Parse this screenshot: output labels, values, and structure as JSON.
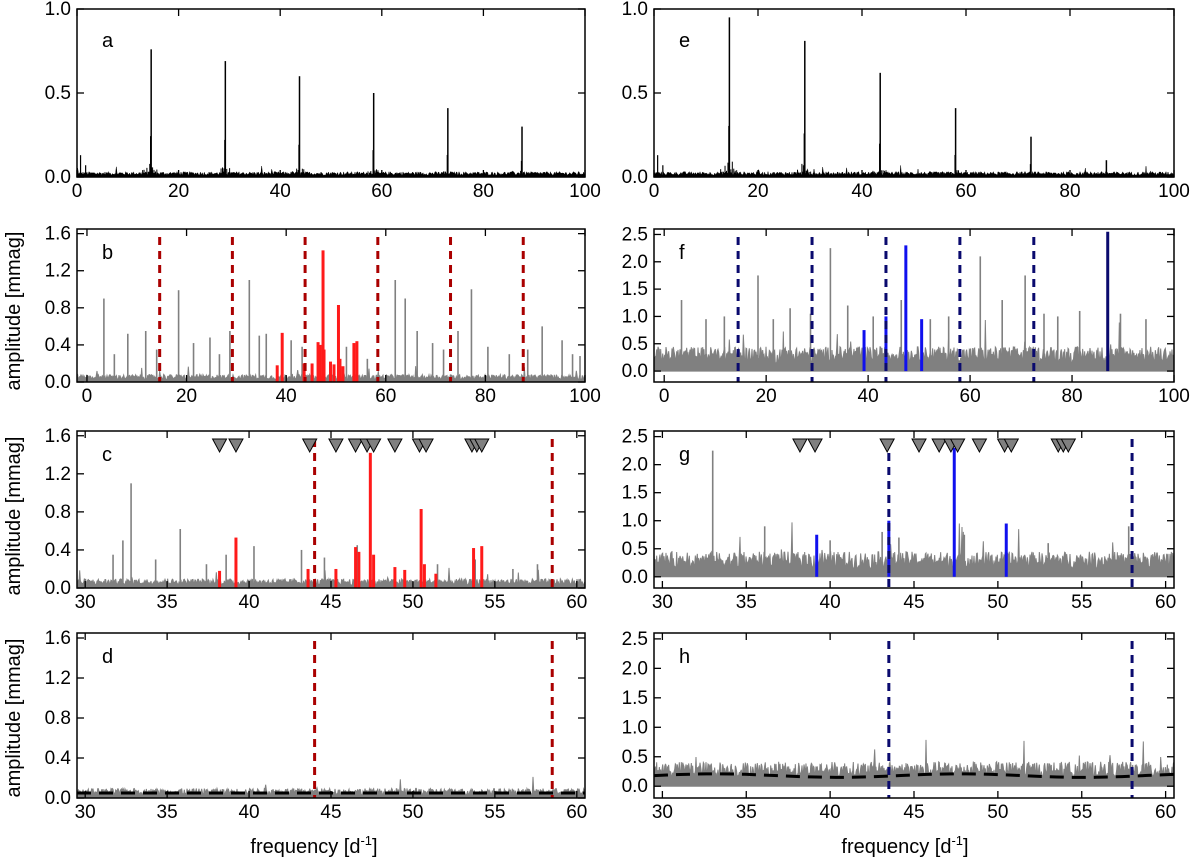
{
  "figure": {
    "ylabel": "amplitude [mmag]",
    "xlabel_main": "frequency [d",
    "xlabel_sup": "-1",
    "xlabel_end": "]"
  },
  "colors": {
    "gray": "#808080",
    "red": "#ff1a1a",
    "darkred": "#aa0000",
    "blue": "#1010ee",
    "navy": "#0a0a6e",
    "black": "#000000"
  },
  "chart_data": [
    {
      "label": "a",
      "type": "line",
      "xlim": [
        0,
        100
      ],
      "ylim": [
        0,
        1.0
      ],
      "xticks": [
        0,
        20,
        40,
        60,
        80,
        100
      ],
      "yticks": [
        0.0,
        0.5,
        1.0
      ],
      "ytick_fmt": 1,
      "peaks": [
        [
          14.6,
          0.76
        ],
        [
          29.2,
          0.69
        ],
        [
          43.8,
          0.6
        ],
        [
          58.4,
          0.5
        ],
        [
          73.0,
          0.41
        ],
        [
          87.6,
          0.3
        ]
      ],
      "noise_level": 0.02
    },
    {
      "label": "e",
      "type": "line",
      "xlim": [
        0,
        100
      ],
      "ylim": [
        0,
        1.0
      ],
      "xticks": [
        0,
        20,
        40,
        60,
        80,
        100
      ],
      "yticks": [
        0.0,
        0.5,
        1.0
      ],
      "ytick_fmt": 1,
      "peaks": [
        [
          14.5,
          0.95
        ],
        [
          29.0,
          0.81
        ],
        [
          43.5,
          0.62
        ],
        [
          58.0,
          0.41
        ],
        [
          72.5,
          0.24
        ],
        [
          87.0,
          0.1
        ]
      ],
      "noise_level": 0.02
    },
    {
      "label": "b",
      "type": "bar",
      "xlim": [
        -2,
        100
      ],
      "ylim": [
        0,
        1.65
      ],
      "xticks": [
        0,
        20,
        40,
        60,
        80,
        100
      ],
      "yticks": [
        0.0,
        0.4,
        0.8,
        1.2,
        1.6
      ],
      "ytick_fmt": 1,
      "dashed_lines": [
        14.6,
        29.2,
        43.8,
        58.4,
        73.0,
        87.6
      ],
      "gray_peaks": [
        [
          3.4,
          0.9
        ],
        [
          5.5,
          0.3
        ],
        [
          8.2,
          0.52
        ],
        [
          11.8,
          0.55
        ],
        [
          14.0,
          0.35
        ],
        [
          18.4,
          0.99
        ],
        [
          21.4,
          0.42
        ],
        [
          24.7,
          0.48
        ],
        [
          26.6,
          0.3
        ],
        [
          28.7,
          0.55
        ],
        [
          32.6,
          1.1
        ],
        [
          34.6,
          0.5
        ],
        [
          36.0,
          0.52
        ],
        [
          41.0,
          0.45
        ],
        [
          43.2,
          0.38
        ],
        [
          47.5,
          0.4
        ],
        [
          52.1,
          0.38
        ],
        [
          56.3,
          0.25
        ],
        [
          61.9,
          1.1
        ],
        [
          63.9,
          0.9
        ],
        [
          66.3,
          0.55
        ],
        [
          69.4,
          0.42
        ],
        [
          71.6,
          0.35
        ],
        [
          74.5,
          0.55
        ],
        [
          77.2,
          1.0
        ],
        [
          80.5,
          0.38
        ],
        [
          84.8,
          0.3
        ],
        [
          88.5,
          0.35
        ],
        [
          91.4,
          0.6
        ],
        [
          95.4,
          0.45
        ],
        [
          97.5,
          0.3
        ],
        [
          99.0,
          0.28
        ]
      ],
      "red_peaks": [
        [
          38.2,
          0.18
        ],
        [
          39.2,
          0.53
        ],
        [
          43.6,
          0.2
        ],
        [
          45.2,
          0.2
        ],
        [
          46.4,
          0.43
        ],
        [
          46.8,
          0.4
        ],
        [
          47.4,
          1.42
        ],
        [
          47.6,
          0.35
        ],
        [
          48.9,
          0.22
        ],
        [
          49.6,
          0.19
        ],
        [
          50.5,
          0.83
        ],
        [
          50.8,
          0.25
        ],
        [
          51.4,
          0.17
        ],
        [
          53.6,
          0.42
        ],
        [
          54.2,
          0.44
        ]
      ],
      "noise_level": 0.05
    },
    {
      "label": "f",
      "type": "bar",
      "xlim": [
        -2,
        100
      ],
      "ylim": [
        -0.2,
        2.6
      ],
      "xticks": [
        0,
        20,
        40,
        60,
        80,
        100
      ],
      "yticks": [
        0.0,
        0.5,
        1.0,
        1.5,
        2.0,
        2.5
      ],
      "ytick_fmt": 1,
      "dashed_lines": [
        14.5,
        29.0,
        43.5,
        58.0,
        72.5
      ],
      "gray_peaks": [
        [
          3.4,
          1.3
        ],
        [
          8.2,
          0.95
        ],
        [
          11.8,
          1.0
        ],
        [
          18.4,
          1.75
        ],
        [
          21.4,
          0.95
        ],
        [
          24.7,
          1.15
        ],
        [
          28.7,
          1.05
        ],
        [
          32.6,
          2.25
        ],
        [
          36.0,
          1.2
        ],
        [
          41.0,
          1.0
        ],
        [
          46.5,
          1.3
        ],
        [
          52.2,
          0.95
        ],
        [
          55.8,
          1.0
        ],
        [
          62.0,
          2.1
        ],
        [
          66.3,
          1.3
        ],
        [
          70.8,
          1.75
        ],
        [
          74.5,
          1.05
        ],
        [
          77.2,
          1.0
        ],
        [
          81.5,
          1.1
        ],
        [
          89.5,
          1.05
        ],
        [
          94.5,
          0.95
        ]
      ],
      "blue_peaks": [
        [
          39.2,
          0.75
        ],
        [
          43.5,
          1.0
        ],
        [
          47.4,
          2.3
        ],
        [
          50.5,
          0.95
        ]
      ],
      "navy_peaks": [
        [
          87.0,
          2.55
        ]
      ],
      "noise_level": 0.28
    },
    {
      "label": "c",
      "type": "bar",
      "xlim": [
        29.5,
        60.5
      ],
      "ylim": [
        0,
        1.65
      ],
      "xticks": [
        30,
        35,
        40,
        45,
        50,
        55,
        60
      ],
      "yticks": [
        0.0,
        0.4,
        0.8,
        1.2,
        1.6
      ],
      "ytick_fmt": 1,
      "dashed_lines": [
        44.0,
        58.5
      ],
      "triangles": [
        38.2,
        39.2,
        43.7,
        45.3,
        46.5,
        47.2,
        47.6,
        48.9,
        50.4,
        50.8,
        53.6,
        53.9,
        54.2
      ],
      "gray_peaks": [
        [
          31.7,
          0.35
        ],
        [
          32.3,
          0.5
        ],
        [
          32.8,
          1.1
        ],
        [
          34.3,
          0.3
        ],
        [
          35.8,
          0.62
        ],
        [
          37.4,
          0.25
        ],
        [
          38.6,
          0.35
        ],
        [
          40.3,
          0.44
        ],
        [
          43.2,
          0.4
        ],
        [
          44.6,
          0.32
        ],
        [
          46.6,
          0.45
        ],
        [
          51.5,
          0.25
        ],
        [
          53.8,
          0.3
        ],
        [
          56.1,
          0.2
        ],
        [
          57.6,
          0.25
        ]
      ],
      "red_peaks": [
        [
          38.2,
          0.18
        ],
        [
          39.2,
          0.53
        ],
        [
          43.6,
          0.2
        ],
        [
          45.3,
          0.2
        ],
        [
          46.5,
          0.43
        ],
        [
          46.7,
          0.38
        ],
        [
          47.4,
          1.42
        ],
        [
          47.6,
          0.35
        ],
        [
          48.9,
          0.22
        ],
        [
          49.5,
          0.19
        ],
        [
          50.5,
          0.83
        ],
        [
          50.7,
          0.25
        ],
        [
          51.4,
          0.15
        ],
        [
          53.7,
          0.42
        ],
        [
          54.2,
          0.44
        ]
      ],
      "noise_level": 0.06
    },
    {
      "label": "g",
      "type": "bar",
      "xlim": [
        29.5,
        60.5
      ],
      "ylim": [
        -0.2,
        2.6
      ],
      "xticks": [
        30,
        35,
        40,
        45,
        50,
        55,
        60
      ],
      "yticks": [
        0.0,
        0.5,
        1.0,
        1.5,
        2.0,
        2.5
      ],
      "ytick_fmt": 1,
      "dashed_lines": [
        43.5,
        58.0
      ],
      "triangles": [
        38.2,
        39.1,
        43.4,
        45.3,
        46.5,
        47.2,
        47.6,
        48.9,
        50.4,
        50.8,
        53.6,
        53.9,
        54.2
      ],
      "gray_peaks": [
        [
          33.0,
          2.25
        ],
        [
          36.1,
          0.9
        ],
        [
          40.0,
          0.65
        ],
        [
          43.1,
          0.8
        ],
        [
          44.1,
          0.7
        ],
        [
          48.0,
          0.75
        ],
        [
          53.0,
          0.6
        ],
        [
          57.8,
          0.9
        ]
      ],
      "blue_peaks": [
        [
          39.2,
          0.75
        ],
        [
          43.5,
          1.0
        ],
        [
          47.4,
          2.3
        ],
        [
          50.5,
          0.95
        ]
      ],
      "noise_level": 0.28
    },
    {
      "label": "d",
      "type": "line",
      "xlim": [
        29.5,
        60.5
      ],
      "ylim": [
        0,
        1.65
      ],
      "xticks": [
        30,
        35,
        40,
        45,
        50,
        55,
        60
      ],
      "yticks": [
        0.0,
        0.4,
        0.8,
        1.2,
        1.6
      ],
      "ytick_fmt": 1,
      "dashed_lines": [
        44.0,
        58.5
      ],
      "noise_level": 0.06,
      "fit_level": 0.05
    },
    {
      "label": "h",
      "type": "line",
      "xlim": [
        29.5,
        60.5
      ],
      "ylim": [
        -0.2,
        2.6
      ],
      "xticks": [
        30,
        35,
        40,
        45,
        50,
        55,
        60
      ],
      "yticks": [
        0.0,
        0.5,
        1.0,
        1.5,
        2.0,
        2.5
      ],
      "ytick_fmt": 1,
      "dashed_lines": [
        43.5,
        58.0
      ],
      "noise_level": 0.26,
      "fit_level": 0.18
    }
  ]
}
